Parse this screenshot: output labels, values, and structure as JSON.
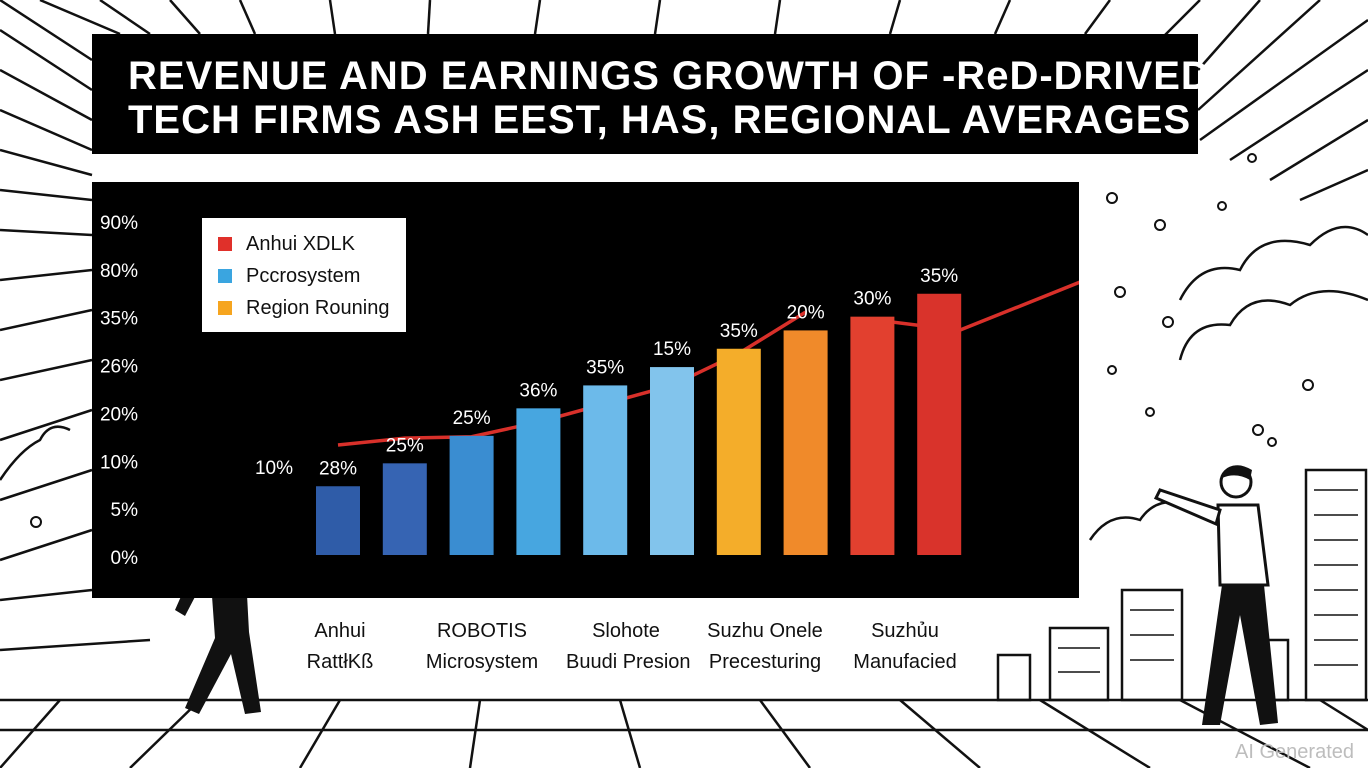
{
  "title": {
    "line1": "REVENUE AND EARNINGS GROWTH OF -ReD-DRIVED",
    "line2": "TECH FIRMS ASH EEST, HAS, REGIONAL AVERAGES"
  },
  "chart_data": {
    "type": "bar",
    "yaxis_ticks": [
      "90%",
      "80%",
      "35%",
      "26%",
      "20%",
      "10%",
      "5%",
      "0%"
    ],
    "legend": [
      {
        "label": "Anhui XDLK",
        "color": "#e0302a"
      },
      {
        "label": "Pccrosystem",
        "color": "#3aa5e0"
      },
      {
        "label": "Region Rouning",
        "color": "#f6a51f"
      }
    ],
    "bars": [
      {
        "value": 15,
        "label": "28%",
        "color": "#2f5ca8"
      },
      {
        "value": 20,
        "label": "25%",
        "color": "#3664b3"
      },
      {
        "value": 26,
        "label": "25%",
        "color": "#3a8dd1"
      },
      {
        "value": 32,
        "label": "36%",
        "color": "#47a6e0"
      },
      {
        "value": 37,
        "label": "35%",
        "color": "#6cbaea"
      },
      {
        "value": 41,
        "label": "15%",
        "color": "#82c4ec"
      },
      {
        "value": 45,
        "label": "35%",
        "color": "#f4ad2a"
      },
      {
        "value": 49,
        "label": "20%",
        "color": "#f08a2a"
      },
      {
        "value": 52,
        "label": "30%",
        "color": "#e2402f"
      },
      {
        "value": 57,
        "label": "35%",
        "color": "#d9332b"
      }
    ],
    "ylim": [
      0,
      72
    ],
    "extra_labels": [
      "10%"
    ],
    "trend_line": {
      "color": "#d8302a",
      "segment1": [
        [
          0,
          24
        ],
        [
          1,
          25.5
        ],
        [
          2,
          25.8
        ],
        [
          3,
          29
        ],
        [
          4,
          33
        ],
        [
          5,
          37
        ],
        [
          6,
          44
        ],
        [
          7,
          53
        ]
      ],
      "segment2": [
        [
          8.2,
          51
        ],
        [
          9.3,
          49
        ],
        [
          11.1,
          59.5
        ],
        [
          12.5,
          66
        ]
      ]
    },
    "categories": [
      {
        "line1": "Anhui",
        "line2": "RattłKß"
      },
      {
        "line1": "ROBOTIS",
        "line2": "Microsystem"
      },
      {
        "line1": "Slohote",
        "line2": "Buudi Presion"
      },
      {
        "line1": "Suzhu Onele",
        "line2": "Precesturing"
      },
      {
        "line1": "Suzhủu",
        "line2": "Manufacied"
      }
    ]
  },
  "watermark": "AI Generated"
}
